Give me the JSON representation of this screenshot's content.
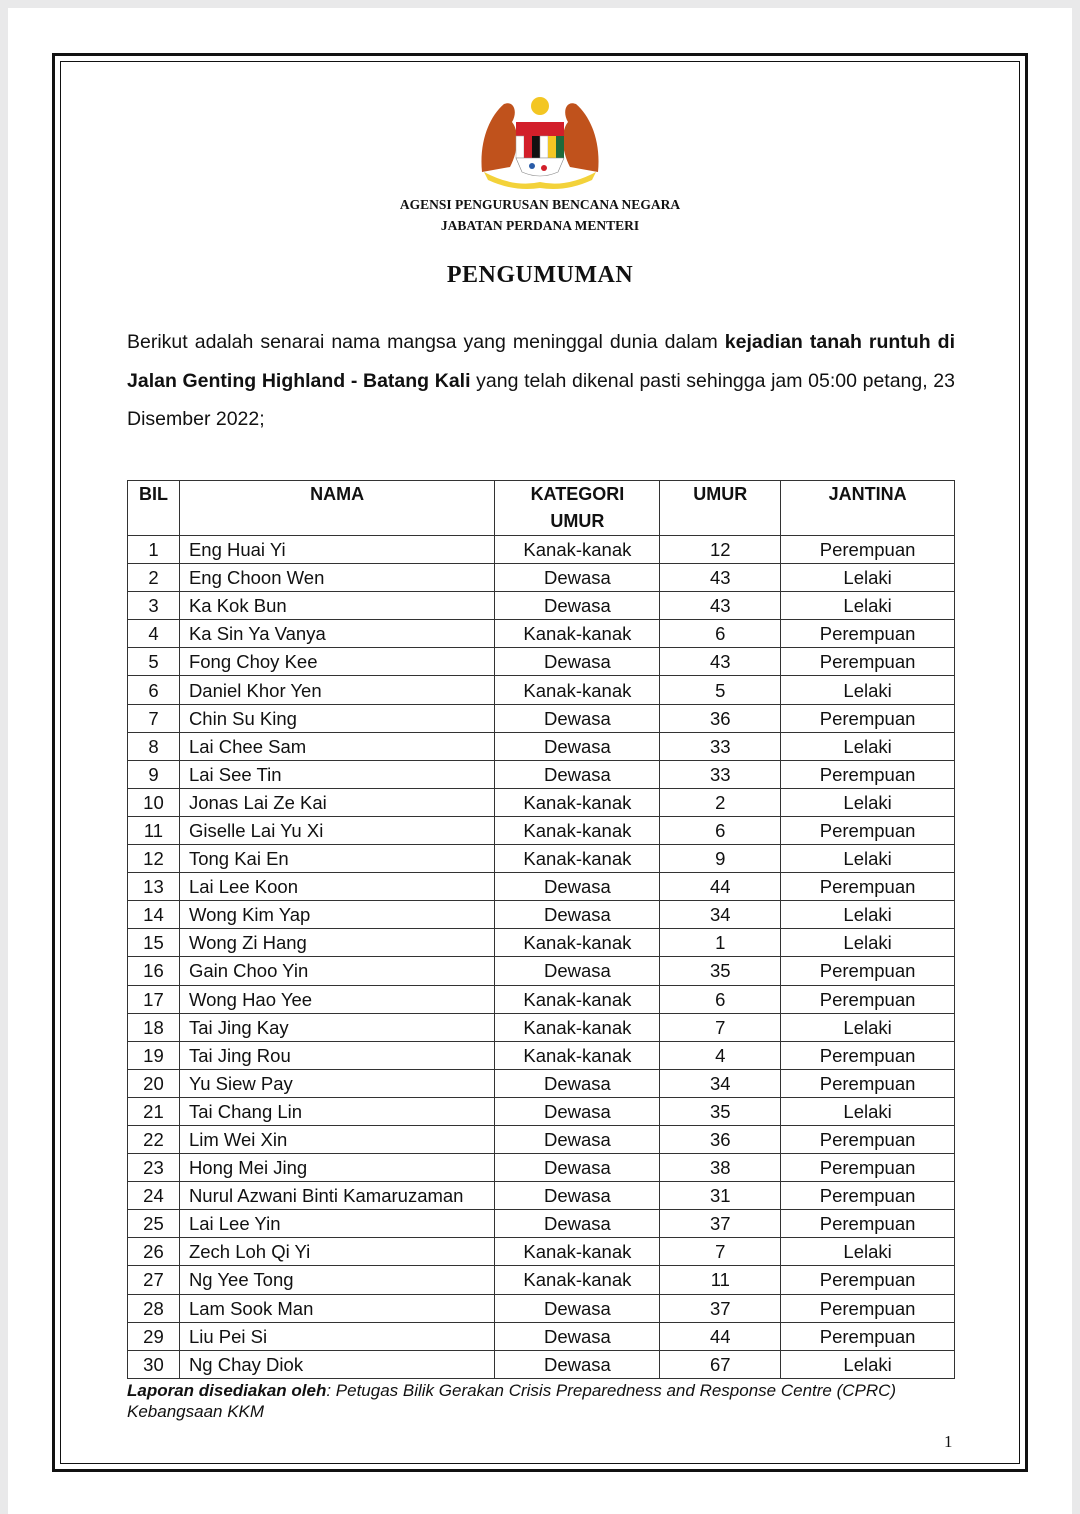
{
  "header": {
    "crest": "Jata Negara Malaysia",
    "agency_line1": "AGENSI PENGURUSAN BENCANA NEGARA",
    "agency_line2": "JABATAN PERDANA MENTERI"
  },
  "title": "PENGUMUMAN",
  "intro": {
    "part1": "Berikut adalah senarai nama mangsa yang meninggal dunia dalam ",
    "bold": "kejadian tanah runtuh di Jalan Genting Highland - Batang Kali",
    "part2": " yang telah dikenal pasti sehingga jam 05:00 petang, 23 Disember 2022;"
  },
  "table": {
    "headers": [
      "BIL",
      "NAMA",
      "KATEGORI UMUR",
      "UMUR",
      "JANTINA"
    ],
    "rows": [
      [
        "1",
        "Eng Huai Yi",
        "Kanak-kanak",
        "12",
        "Perempuan"
      ],
      [
        "2",
        "Eng Choon Wen",
        "Dewasa",
        "43",
        "Lelaki"
      ],
      [
        "3",
        "Ka Kok Bun",
        "Dewasa",
        "43",
        "Lelaki"
      ],
      [
        "4",
        "Ka Sin Ya Vanya",
        "Kanak-kanak",
        "6",
        "Perempuan"
      ],
      [
        "5",
        "Fong Choy Kee",
        "Dewasa",
        "43",
        "Perempuan"
      ],
      [
        "6",
        "Daniel Khor Yen",
        "Kanak-kanak",
        "5",
        "Lelaki"
      ],
      [
        "7",
        "Chin Su King",
        "Dewasa",
        "36",
        "Perempuan"
      ],
      [
        "8",
        "Lai Chee Sam",
        "Dewasa",
        "33",
        "Lelaki"
      ],
      [
        "9",
        "Lai See Tin",
        "Dewasa",
        "33",
        "Perempuan"
      ],
      [
        "10",
        "Jonas Lai Ze Kai",
        "Kanak-kanak",
        "2",
        "Lelaki"
      ],
      [
        "11",
        "Giselle Lai Yu Xi",
        "Kanak-kanak",
        "6",
        "Perempuan"
      ],
      [
        "12",
        "Tong Kai En",
        "Kanak-kanak",
        "9",
        "Lelaki"
      ],
      [
        "13",
        "Lai Lee Koon",
        "Dewasa",
        "44",
        "Perempuan"
      ],
      [
        "14",
        "Wong Kim Yap",
        "Dewasa",
        "34",
        "Lelaki"
      ],
      [
        "15",
        "Wong Zi Hang",
        "Kanak-kanak",
        "1",
        "Lelaki"
      ],
      [
        "16",
        "Gain Choo Yin",
        "Dewasa",
        "35",
        "Perempuan"
      ],
      [
        "17",
        "Wong Hao Yee",
        "Kanak-kanak",
        "6",
        "Perempuan"
      ],
      [
        "18",
        "Tai Jing Kay",
        "Kanak-kanak",
        "7",
        "Lelaki"
      ],
      [
        "19",
        "Tai Jing Rou",
        "Kanak-kanak",
        "4",
        "Perempuan"
      ],
      [
        "20",
        "Yu Siew Pay",
        "Dewasa",
        "34",
        "Perempuan"
      ],
      [
        "21",
        "Tai Chang Lin",
        "Dewasa",
        "35",
        "Lelaki"
      ],
      [
        "22",
        "Lim Wei Xin",
        "Dewasa",
        "36",
        "Perempuan"
      ],
      [
        "23",
        "Hong Mei Jing",
        "Dewasa",
        "38",
        "Perempuan"
      ],
      [
        "24",
        "Nurul Azwani Binti Kamaruzaman",
        "Dewasa",
        "31",
        "Perempuan"
      ],
      [
        "25",
        "Lai Lee Yin",
        "Dewasa",
        "37",
        "Perempuan"
      ],
      [
        "26",
        "Zech Loh Qi Yi",
        "Kanak-kanak",
        "7",
        "Lelaki"
      ],
      [
        "27",
        "Ng Yee Tong",
        "Kanak-kanak",
        "11",
        "Perempuan"
      ],
      [
        "28",
        "Lam Sook Man",
        "Dewasa",
        "37",
        "Perempuan"
      ],
      [
        "29",
        "Liu Pei Si",
        "Dewasa",
        "44",
        "Perempuan"
      ],
      [
        "30",
        "Ng Chay Diok",
        "Dewasa",
        "67",
        "Lelaki"
      ]
    ]
  },
  "footer": {
    "label": "Laporan disediakan oleh",
    "text": ": Petugas Bilik Gerakan Crisis Preparedness and Response Centre (CPRC) Kebangsaan KKM"
  },
  "page_number": "1"
}
